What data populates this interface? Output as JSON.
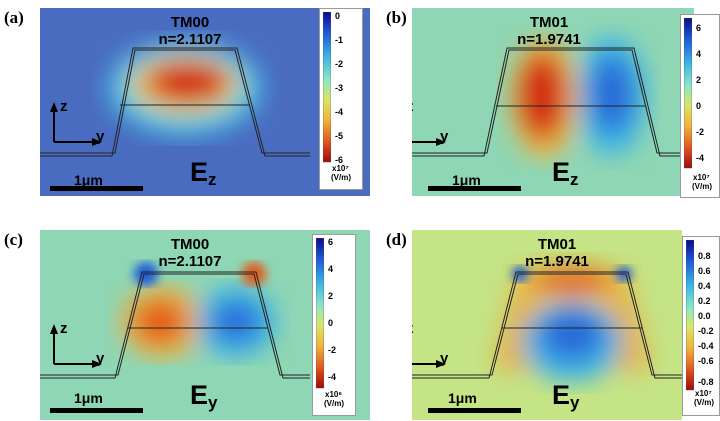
{
  "colors": {
    "colormap": [
      "#0a0a8a",
      "#1e5ad8",
      "#3cb4e6",
      "#8ce6c8",
      "#d6e66a",
      "#f0b43c",
      "#e05a1e",
      "#a00a0a"
    ],
    "bg_blue": "#4a6cc0",
    "bg_green": "#8fd6b4"
  },
  "panels": [
    {
      "label": "(a)",
      "mode": "TM00",
      "index": "n=2.1107",
      "component": "E",
      "component_sub": "z",
      "colorbar": {
        "ticks": [
          "0",
          "-1",
          "-2",
          "-3",
          "-4",
          "-5",
          "-6"
        ],
        "exponent": "x10⁷",
        "units": "(V/m)"
      }
    },
    {
      "label": "(b)",
      "mode": "TM01",
      "index": "n=1.9741",
      "component": "E",
      "component_sub": "z",
      "colorbar": {
        "ticks": [
          "6",
          "4",
          "2",
          "0",
          "-2",
          "-4"
        ],
        "exponent": "x10⁷",
        "units": "(V/m)"
      }
    },
    {
      "label": "(c)",
      "mode": "TM00",
      "index": "n=2.1107",
      "component": "E",
      "component_sub": "y",
      "colorbar": {
        "ticks": [
          "6",
          "4",
          "2",
          "0",
          "-2",
          "-4"
        ],
        "exponent": "x10⁶",
        "units": "(V/m)"
      }
    },
    {
      "label": "(d)",
      "mode": "TM01",
      "index": "n=1.9741",
      "component": "E",
      "component_sub": "y",
      "colorbar": {
        "ticks": [
          "0.8",
          "0.6",
          "0.4",
          "0.2",
          "0.0",
          "-0.2",
          "-0.4",
          "-0.6",
          "-0.8"
        ],
        "exponent": "x10⁷",
        "units": "(V/m)"
      }
    }
  ],
  "axes": {
    "z_label": "z",
    "y_label": "y"
  },
  "scale_bar": "1μm"
}
